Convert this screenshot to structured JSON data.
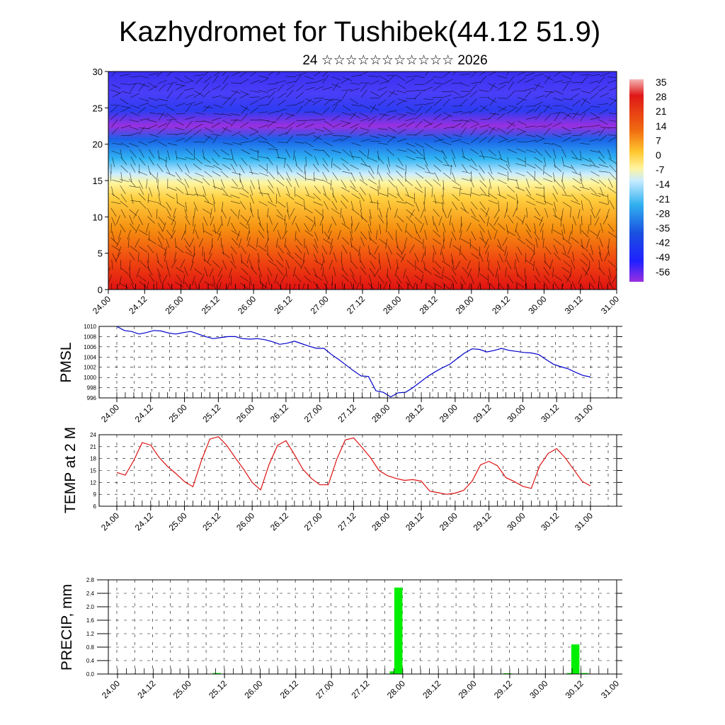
{
  "title": "Kazhydromet for Tushibek(44.12 51.9)",
  "subtitle": "24 ☆☆☆☆☆☆☆☆☆☆☆ 2026",
  "date_labels": [
    "24.00",
    "24.12",
    "25.00",
    "25.12",
    "26.00",
    "26.12",
    "27.00",
    "27.12",
    "28.00",
    "28.12",
    "29.00",
    "29.12",
    "30.00",
    "30.12",
    "31.00"
  ],
  "colorbar": {
    "labels": [
      "35",
      "28",
      "21",
      "14",
      "7",
      "0",
      "-7",
      "-14",
      "-21",
      "-28",
      "-35",
      "-42",
      "-49",
      "-56"
    ],
    "stops": [
      "#f4b0b0",
      "#e01818",
      "#f06a10",
      "#ffcc30",
      "#fff4a0",
      "#c8ecff",
      "#30b0f0",
      "#1a50e0",
      "#2020ff",
      "#9a30e0"
    ]
  },
  "chart_data": [
    {
      "type": "heatmap",
      "name": "temperature-cross-section",
      "title": "",
      "ylabel": "",
      "ylim": [
        0,
        30
      ],
      "yticks": [
        0,
        5,
        10,
        15,
        20,
        25,
        30
      ],
      "xlabel": "",
      "color_range": [
        -56,
        35
      ],
      "overlay": "wind barbs"
    },
    {
      "type": "line",
      "name": "pmsl",
      "ylabel": "PMSL",
      "ylim": [
        996,
        1010
      ],
      "yticks": [
        996,
        998,
        1000,
        1002,
        1004,
        1006,
        1008,
        1010
      ],
      "color": "#0000cc",
      "values": [
        1010,
        1009.2,
        1009,
        1008.5,
        1008.8,
        1009.2,
        1009.1,
        1008.7,
        1008.5,
        1008.8,
        1009,
        1008.5,
        1008,
        1007.6,
        1007.8,
        1008,
        1008,
        1007.6,
        1007.5,
        1007.6,
        1007.4,
        1007,
        1006.5,
        1006.7,
        1007.1,
        1006.6,
        1006.1,
        1005.7,
        1005.7,
        1004.5,
        1003.5,
        1002.4,
        1001.3,
        1000.3,
        1000.2,
        997.4,
        997.1,
        996.2,
        997,
        997.1,
        998,
        999.1,
        1000.2,
        1001.1,
        1001.9,
        1002.6,
        1003.7,
        1004.8,
        1005.6,
        1005.5,
        1005,
        1005.3,
        1005.7,
        1005.3,
        1005.1,
        1004.9,
        1004.8,
        1004.5,
        1003.5,
        1002.6,
        1002.1,
        1001.7,
        1001,
        1000.4,
        1000.1
      ]
    },
    {
      "type": "line",
      "name": "temp-2m",
      "ylabel": "TEMP at 2 M",
      "ylim": [
        6,
        24
      ],
      "yticks": [
        6,
        9,
        12,
        15,
        18,
        21,
        24
      ],
      "color": "#dd1111",
      "values": [
        14.5,
        13.8,
        17.5,
        22,
        21.4,
        18.3,
        16,
        14.2,
        12.2,
        10.9,
        17.5,
        22.9,
        23.5,
        21.3,
        18.2,
        15.3,
        12,
        10.1,
        16.5,
        21.3,
        22.5,
        19,
        15.3,
        13,
        11.4,
        11.4,
        17.8,
        22.7,
        23.2,
        20.8,
        18.2,
        15,
        13.7,
        13,
        12.5,
        12.7,
        12.3,
        9.8,
        9.4,
        9,
        9.3,
        10,
        12.3,
        16.4,
        17.3,
        16.2,
        13.2,
        12.2,
        11,
        10.5,
        16.2,
        19.3,
        20.5,
        18.2,
        15.3,
        12.3,
        11.1
      ]
    },
    {
      "type": "bar",
      "name": "precip",
      "ylabel": "PRECIP, mm",
      "ylim": [
        0,
        2.8
      ],
      "yticks": [
        "0.0",
        "0.4",
        "0.8",
        "1.2",
        "1.6",
        "2.0",
        "2.4",
        "2.8"
      ],
      "color": "#00ee00",
      "bars": [
        {
          "x": 23,
          "value": 0.03
        },
        {
          "x": 62,
          "value": 0.08
        },
        {
          "x": 63,
          "value": 2.57
        },
        {
          "x": 87,
          "value": 0.02
        },
        {
          "x": 89,
          "value": 0.01
        },
        {
          "x": 101,
          "value": 0.03
        },
        {
          "x": 102,
          "value": 0.88
        },
        {
          "x": 104,
          "value": 0.03
        }
      ],
      "x_steps": 112
    }
  ]
}
